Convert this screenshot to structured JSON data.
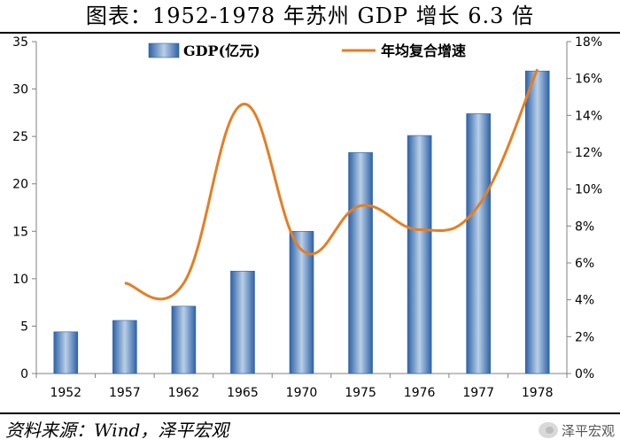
{
  "header": {
    "title": "图表：1952-1978 年苏州 GDP 增长 6.3 倍"
  },
  "footer": {
    "source": "资料来源：Wind，泽平宏观",
    "watermark": "泽平宏观"
  },
  "chart_data": {
    "type": "bar+line",
    "categories": [
      "1952",
      "1957",
      "1962",
      "1965",
      "1970",
      "1975",
      "1976",
      "1977",
      "1978"
    ],
    "series": [
      {
        "name": "GDP(亿元)",
        "type": "bar",
        "axis": "left",
        "color": "#4f86c6",
        "values": [
          4.4,
          5.6,
          7.1,
          10.8,
          15.0,
          23.3,
          25.1,
          27.4,
          31.9
        ]
      },
      {
        "name": "年均复合增速",
        "type": "line",
        "axis": "right",
        "color": "#e67e22",
        "values": [
          null,
          4.9,
          4.9,
          14.6,
          6.7,
          9.1,
          7.8,
          9.1,
          16.5
        ]
      }
    ],
    "y_left": {
      "min": 0,
      "max": 35,
      "ticks": [
        0,
        5,
        10,
        15,
        20,
        25,
        30,
        35
      ]
    },
    "y_right": {
      "min": 0,
      "max": 18,
      "ticks": [
        "0%",
        "2%",
        "4%",
        "6%",
        "8%",
        "10%",
        "12%",
        "14%",
        "16%",
        "18%"
      ]
    },
    "legend_position": "top-center",
    "grid": false
  }
}
